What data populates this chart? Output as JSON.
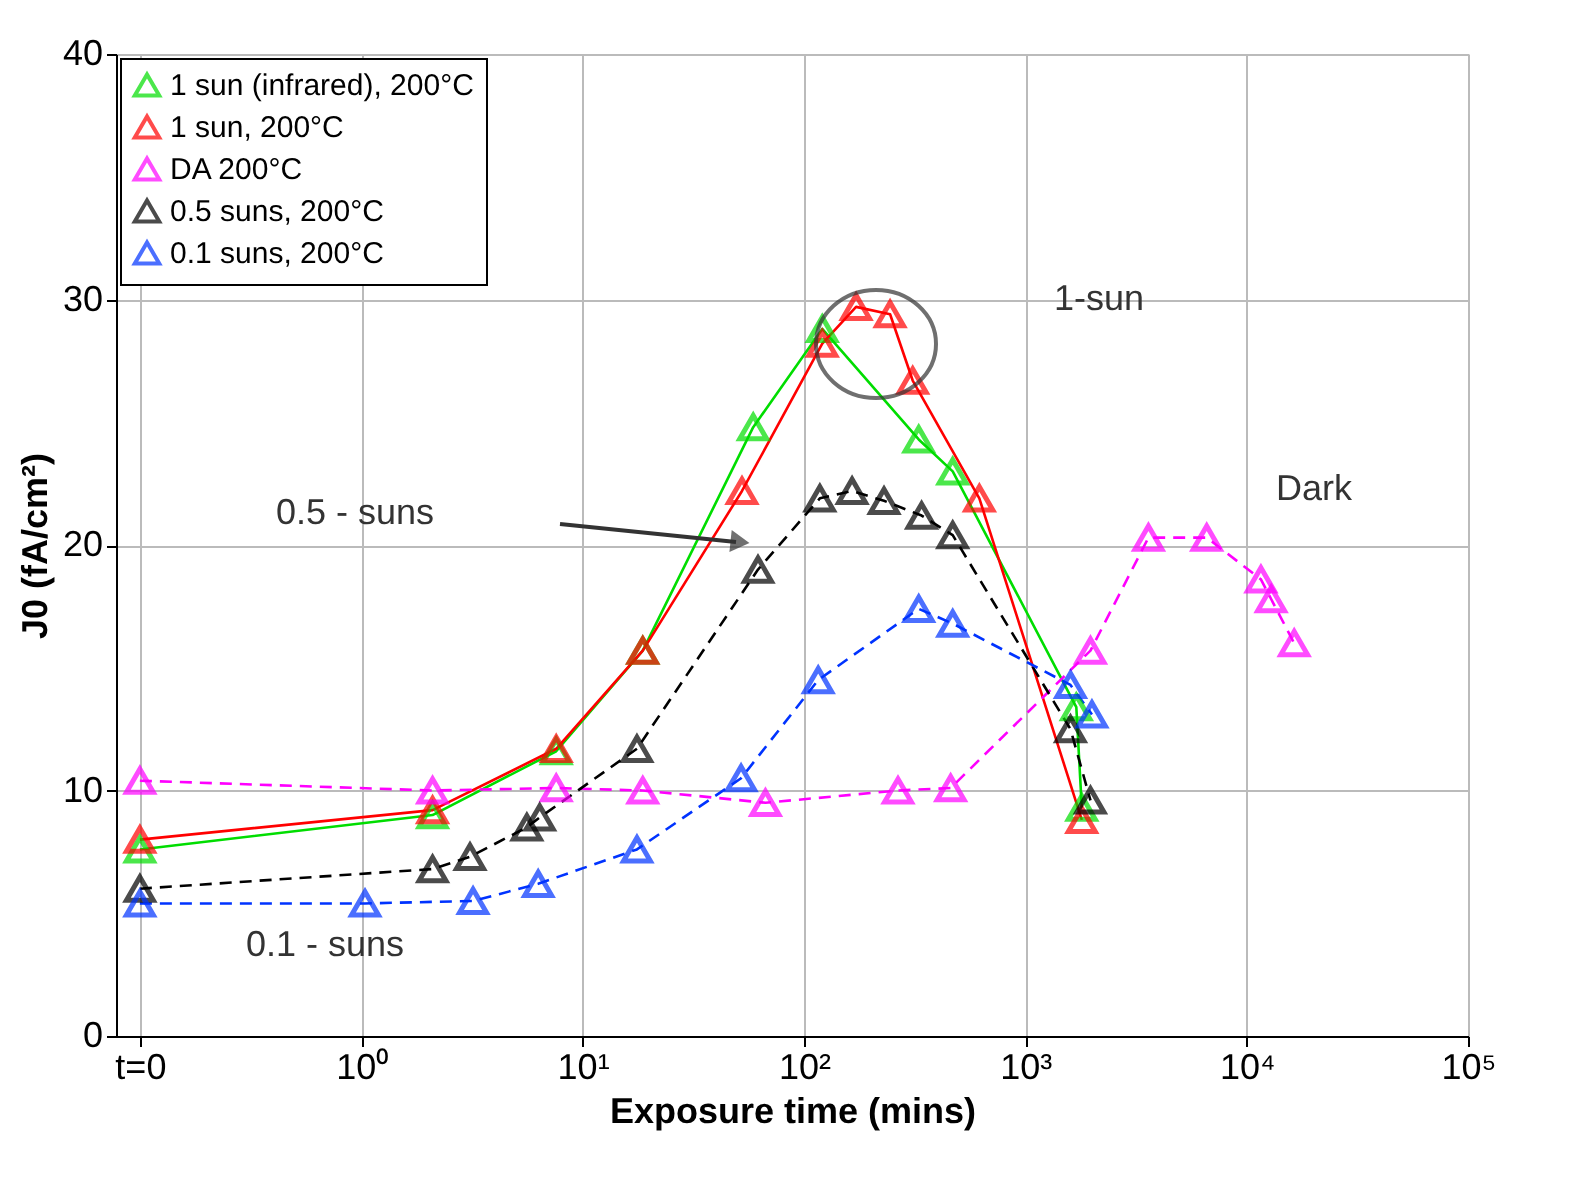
{
  "chart_data": {
    "type": "line",
    "xlabel": "Exposure time (mins)",
    "ylabel": "J0 (fA/cm²)",
    "log": "x",
    "xlim": [
      0.078,
      100000
    ],
    "ylim": [
      0,
      40
    ],
    "xticks": [
      {
        "value": 0.1,
        "label": "t=0"
      },
      {
        "value": 1,
        "label": "10⁰"
      },
      {
        "value": 10,
        "label": "10¹"
      },
      {
        "value": 100,
        "label": "10²"
      },
      {
        "value": 1000,
        "label": "10³"
      },
      {
        "value": 10000,
        "label": "10⁴"
      },
      {
        "value": 100000,
        "label": "10⁵"
      }
    ],
    "yticks": [
      0,
      10,
      20,
      30,
      40
    ],
    "grid": true,
    "legend": "top left",
    "marker": "triangle",
    "annotations": [
      "1-sun",
      "0.5 - suns",
      "0.1 - suns",
      "Dark"
    ],
    "series": [
      {
        "name": "1 sun (infrared), 200°C",
        "color": "#00dd00",
        "line_style": "solid",
        "x": [
          0.1,
          2.1,
          7.6,
          18.7,
          59,
          121,
          330,
          470,
          1700,
          1800
        ],
        "values": [
          7.6,
          9.0,
          11.6,
          15.7,
          24.8,
          28.8,
          24.3,
          23.0,
          13.4,
          9.3
        ]
      },
      {
        "name": "1 sun, 200°C",
        "color": "#ff0000",
        "line_style": "solid",
        "x": [
          0.1,
          2.1,
          7.6,
          18.7,
          52.5,
          121,
          172,
          245,
          310,
          620,
          1800
        ],
        "values": [
          8.0,
          9.2,
          11.7,
          15.7,
          22.2,
          28.2,
          29.7,
          29.4,
          26.7,
          21.9,
          8.8
        ]
      },
      {
        "name": "DA 200°C",
        "color": "#ff00ff",
        "line_style": "dashed",
        "x": [
          0.1,
          2.1,
          7.6,
          18.7,
          67,
          266,
          460,
          1970,
          3600,
          6600,
          11600,
          12900,
          16400
        ],
        "values": [
          10.4,
          10.0,
          10.1,
          10.0,
          9.5,
          10.0,
          10.1,
          15.7,
          20.3,
          20.3,
          18.6,
          17.8,
          16.0
        ]
      },
      {
        "name": "0.5 suns, 200°C",
        "color": "#000000",
        "line_style": "dashed",
        "x": [
          0.1,
          2.1,
          3.1,
          5.6,
          6.4,
          17.6,
          62,
          118,
          165,
          230,
          340,
          470,
          1600,
          1970
        ],
        "values": [
          6.0,
          6.8,
          7.3,
          8.5,
          8.9,
          11.7,
          19.0,
          21.9,
          22.2,
          21.8,
          21.2,
          20.4,
          12.5,
          9.6
        ]
      },
      {
        "name": "0.1 suns, 200°C",
        "color": "#0033ff",
        "line_style": "dashed",
        "x": [
          0.1,
          1.04,
          3.2,
          6.3,
          17.6,
          52,
          116,
          330,
          470,
          1600,
          2000
        ],
        "values": [
          5.4,
          5.4,
          5.5,
          6.2,
          7.6,
          10.5,
          14.5,
          17.4,
          16.8,
          14.3,
          13.1
        ]
      }
    ]
  }
}
